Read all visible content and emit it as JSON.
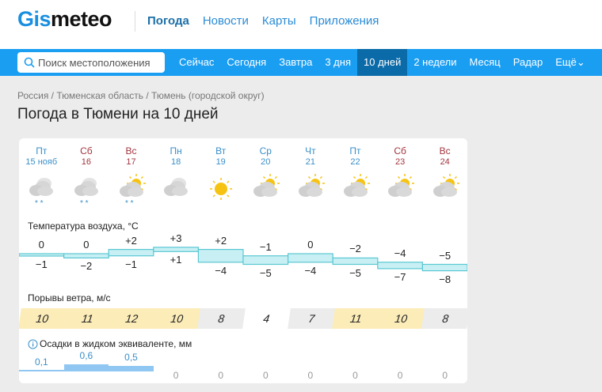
{
  "header": {
    "logo": "Gismeteo",
    "logo_a": "Gis",
    "logo_b": "meteo",
    "nav": [
      "Погода",
      "Новости",
      "Карты",
      "Приложения"
    ]
  },
  "bar": {
    "search_placeholder": "Поиск местоположения",
    "tabs": [
      "Сейчас",
      "Сегодня",
      "Завтра",
      "3 дня",
      "10 дней",
      "2 недели",
      "Месяц",
      "Радар",
      "Ещё"
    ],
    "active_tab": "10 дней"
  },
  "breadcrumb": "Россия / Тюменская область / Тюмень (городской округ)",
  "title": "Погода в Тюмени на 10 дней",
  "days": [
    {
      "dow": "Пт",
      "date": "15 нояб",
      "weekend": false,
      "icon": "cloud-snow"
    },
    {
      "dow": "Сб",
      "date": "16",
      "weekend": true,
      "icon": "cloud-snow"
    },
    {
      "dow": "Вс",
      "date": "17",
      "weekend": true,
      "icon": "partly-cloudy-snow"
    },
    {
      "dow": "Пн",
      "date": "18",
      "weekend": false,
      "icon": "cloudy"
    },
    {
      "dow": "Вт",
      "date": "19",
      "weekend": false,
      "icon": "sun"
    },
    {
      "dow": "Ср",
      "date": "20",
      "weekend": false,
      "icon": "partly-cloudy"
    },
    {
      "dow": "Чт",
      "date": "21",
      "weekend": false,
      "icon": "partly-cloudy"
    },
    {
      "dow": "Пт",
      "date": "22",
      "weekend": false,
      "icon": "partly-cloudy"
    },
    {
      "dow": "Сб",
      "date": "23",
      "weekend": true,
      "icon": "partly-cloudy"
    },
    {
      "dow": "Вс",
      "date": "24",
      "weekend": true,
      "icon": "partly-cloudy"
    }
  ],
  "temperature": {
    "label": "Температура воздуха, °C",
    "max": [
      "0",
      "0",
      "+2",
      "+3",
      "+2",
      "−1",
      "0",
      "−2",
      "−4",
      "−5"
    ],
    "min": [
      "−1",
      "−2",
      "−1",
      "+1",
      "−4",
      "−5",
      "−4",
      "−5",
      "−7",
      "−8"
    ],
    "max_values": [
      0,
      0,
      2,
      3,
      2,
      -1,
      0,
      -2,
      -4,
      -5
    ],
    "min_values": [
      -1,
      -2,
      -1,
      1,
      -4,
      -5,
      -4,
      -5,
      -7,
      -8
    ]
  },
  "wind": {
    "label": "Порывы ветра, м/с",
    "values": [
      "10",
      "11",
      "12",
      "10",
      "8",
      "4",
      "7",
      "11",
      "10",
      "8"
    ]
  },
  "precip": {
    "label": "Осадки в жидком эквиваленте, мм",
    "values": [
      "0,1",
      "0,6",
      "0,5",
      "0",
      "0",
      "0",
      "0",
      "0",
      "0",
      "0"
    ],
    "amounts": [
      0.1,
      0.6,
      0.5,
      0,
      0,
      0,
      0,
      0,
      0,
      0
    ]
  },
  "colors": {
    "brand": "#1a9ef2",
    "active_tab": "#0b6aa8",
    "band": "#c8f0f4",
    "band_line": "#59c7d3",
    "wind_strong": "#fbecb8",
    "wind_mid": "#ececec"
  }
}
